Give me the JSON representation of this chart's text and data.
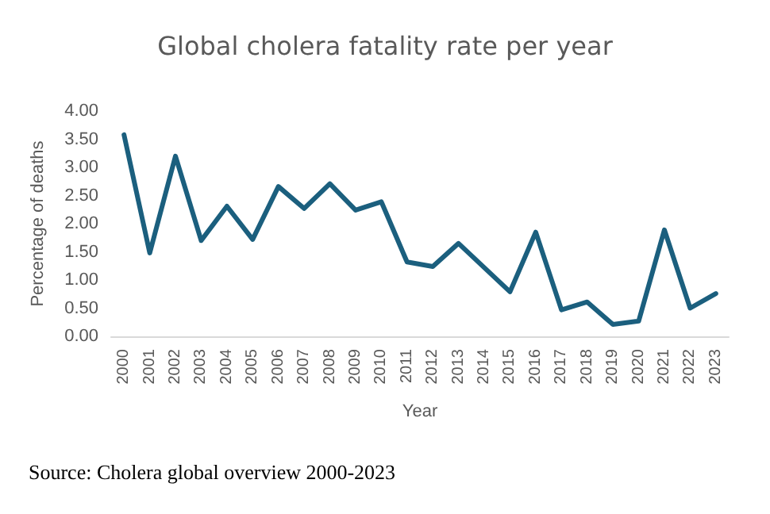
{
  "chart_data": {
    "type": "line",
    "title": "Global cholera fatality rate per year",
    "xlabel": "Year",
    "ylabel": "Percentage of deaths",
    "categories": [
      "2000",
      "2001",
      "2002",
      "2003",
      "2004",
      "2005",
      "2006",
      "2007",
      "2008",
      "2009",
      "2010",
      "2011",
      "2012",
      "2013",
      "2014",
      "2015",
      "2016",
      "2017",
      "2018",
      "2019",
      "2020",
      "2021",
      "2022",
      "2023"
    ],
    "series": [
      {
        "color": "#1b5f7e",
        "values": [
          3.58,
          1.48,
          3.2,
          1.7,
          2.31,
          1.72,
          2.66,
          2.27,
          2.71,
          2.24,
          2.39,
          1.32,
          1.24,
          1.65,
          1.22,
          0.79,
          1.85,
          0.47,
          0.61,
          0.21,
          0.27,
          1.89,
          0.5,
          0.76
        ]
      }
    ],
    "ylim": [
      0,
      4
    ],
    "yticks": [
      {
        "value": 0,
        "label": "0.00"
      },
      {
        "value": 0.5,
        "label": "0.50"
      },
      {
        "value": 1,
        "label": "1.00"
      },
      {
        "value": 1.5,
        "label": "1.50"
      },
      {
        "value": 2,
        "label": "2.00"
      },
      {
        "value": 2.5,
        "label": "2.50"
      },
      {
        "value": 3,
        "label": "3.00"
      },
      {
        "value": 3.5,
        "label": "3.50"
      },
      {
        "value": 4,
        "label": "4.00"
      }
    ],
    "marker": "none",
    "grid": false,
    "annotations": [
      "Source: Cholera global overview 2000-2023"
    ]
  }
}
